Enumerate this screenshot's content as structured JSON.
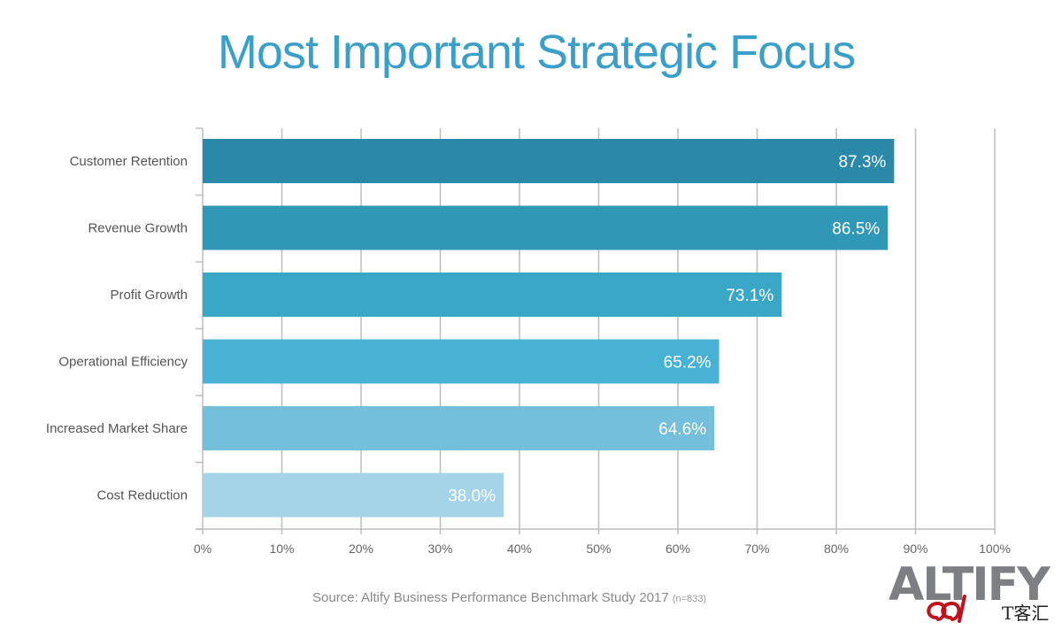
{
  "chart_data": {
    "type": "bar",
    "orientation": "horizontal",
    "title": "Most Important Strategic Focus",
    "categories": [
      "Customer Retention",
      "Revenue Growth",
      "Profit Growth",
      "Operational Efficiency",
      "Increased Market Share",
      "Cost Reduction"
    ],
    "values": [
      87.3,
      86.5,
      73.1,
      65.2,
      64.6,
      38.0
    ],
    "value_labels": [
      "87.3%",
      "86.5%",
      "73.1%",
      "65.2%",
      "64.6%",
      "38.0%"
    ],
    "bar_colors": [
      "#2a88a8",
      "#3197b7",
      "#3aa7c6",
      "#48b2d4",
      "#74c0dc",
      "#a3d4e8"
    ],
    "xlim": [
      0,
      100
    ],
    "x_ticks": [
      "0%",
      "10%",
      "20%",
      "30%",
      "40%",
      "50%",
      "60%",
      "70%",
      "80%",
      "90%",
      "100%"
    ],
    "grid": true,
    "xlabel": "",
    "ylabel": ""
  },
  "source": {
    "text": "Source: Altify Business Performance Benchmark Study 2017",
    "n": "(n=833)"
  },
  "logo": {
    "text": "ALTIFY"
  },
  "watermark": {
    "text": "T客汇"
  },
  "colors": {
    "title": "#3aa0c9",
    "grid": "#bdbdbd",
    "label": "#555555",
    "tick": "#666666"
  }
}
